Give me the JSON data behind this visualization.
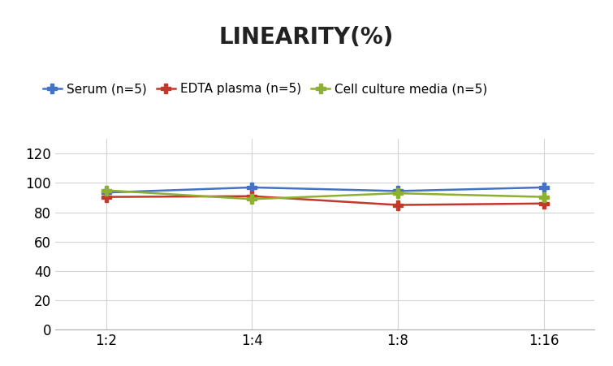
{
  "title": "LINEARITY(%)",
  "title_fontsize": 20,
  "title_fontweight": "bold",
  "x_labels": [
    "1:2",
    "1:4",
    "1:8",
    "1:16"
  ],
  "x_positions": [
    0,
    1,
    2,
    3
  ],
  "series": [
    {
      "label": "Serum (n=5)",
      "values": [
        93.5,
        97.0,
        94.5,
        97.0
      ],
      "color": "#4472C4",
      "marker": "P",
      "markersize": 8,
      "linewidth": 1.8
    },
    {
      "label": "EDTA plasma (n=5)",
      "values": [
        90.5,
        91.0,
        85.0,
        86.0
      ],
      "color": "#C0392B",
      "marker": "P",
      "markersize": 8,
      "linewidth": 1.8
    },
    {
      "label": "Cell culture media (n=5)",
      "values": [
        95.0,
        89.0,
        93.0,
        90.5
      ],
      "color": "#8DB030",
      "marker": "P",
      "markersize": 8,
      "linewidth": 1.8
    }
  ],
  "ylim": [
    0,
    130
  ],
  "yticks": [
    0,
    20,
    40,
    60,
    80,
    100,
    120
  ],
  "background_color": "#ffffff",
  "grid_color": "#d3d3d3",
  "legend_fontsize": 11,
  "tick_fontsize": 12
}
